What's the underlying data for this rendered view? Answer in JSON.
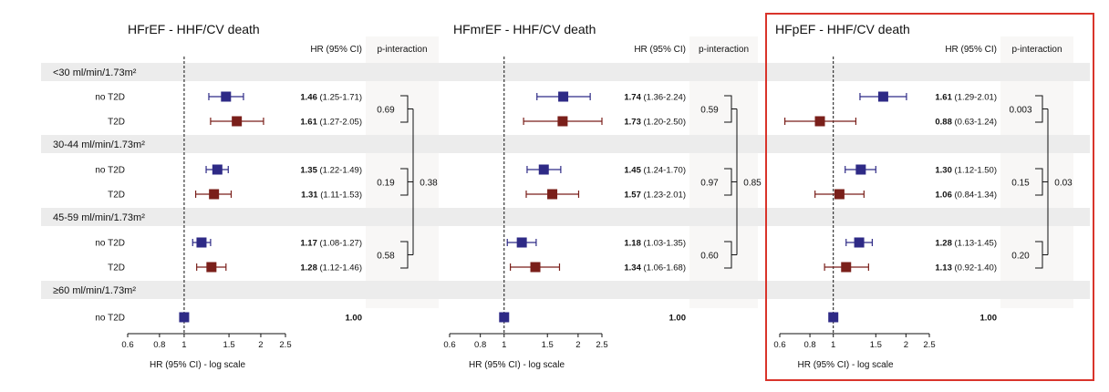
{
  "highlight_color": "#d9342b",
  "colors": {
    "no_t2d": "#2e2a86",
    "t2d": "#7a1f1a"
  },
  "headers": {
    "hr": "HR (95% CI)",
    "p_interaction": "p-interaction"
  },
  "categories": [
    {
      "label": "<30 ml/min/1.73m²",
      "rows": [
        "no T2D",
        "T2D"
      ]
    },
    {
      "label": "30-44 ml/min/1.73m²",
      "rows": [
        "no T2D",
        "T2D"
      ]
    },
    {
      "label": "45-59 ml/min/1.73m²",
      "rows": [
        "no T2D",
        "T2D"
      ]
    },
    {
      "label": "≥60 ml/min/1.73m²",
      "rows": [
        "no T2D"
      ]
    }
  ],
  "chart_data": [
    {
      "type": "forest",
      "title": "HFrEF - HHF/CV death",
      "xlabel": "HR (95% CI) - log scale",
      "x_scale": "log",
      "xlim": [
        0.6,
        2.5
      ],
      "xticks": [
        "0.6",
        "0.8",
        "1",
        "1.5",
        "2",
        "2.5"
      ],
      "reference_line": 1,
      "rows": [
        {
          "group": "<30 ml/min/1.73m²",
          "label": "no T2D",
          "hr": 1.46,
          "lo": 1.25,
          "hi": 1.71,
          "hr_text": "1.46",
          "ci_text": "(1.25-1.71)"
        },
        {
          "group": "<30 ml/min/1.73m²",
          "label": "T2D",
          "hr": 1.61,
          "lo": 1.27,
          "hi": 2.05,
          "hr_text": "1.61",
          "ci_text": "(1.27-2.05)"
        },
        {
          "group": "30-44 ml/min/1.73m²",
          "label": "no T2D",
          "hr": 1.35,
          "lo": 1.22,
          "hi": 1.49,
          "hr_text": "1.35",
          "ci_text": "(1.22-1.49)"
        },
        {
          "group": "30-44 ml/min/1.73m²",
          "label": "T2D",
          "hr": 1.31,
          "lo": 1.11,
          "hi": 1.53,
          "hr_text": "1.31",
          "ci_text": "(1.11-1.53)"
        },
        {
          "group": "45-59 ml/min/1.73m²",
          "label": "no T2D",
          "hr": 1.17,
          "lo": 1.08,
          "hi": 1.27,
          "hr_text": "1.17",
          "ci_text": "(1.08-1.27)"
        },
        {
          "group": "45-59 ml/min/1.73m²",
          "label": "T2D",
          "hr": 1.28,
          "lo": 1.12,
          "hi": 1.46,
          "hr_text": "1.28",
          "ci_text": "(1.12-1.46)"
        },
        {
          "group": "≥60 ml/min/1.73m²",
          "label": "no T2D",
          "hr": 1.0,
          "hr_text": "1.00",
          "ci_text": ""
        }
      ],
      "p_interaction_pairs": [
        "0.69",
        "0.19",
        "0.58"
      ],
      "p_interaction_overall": "0.38",
      "highlighted": false
    },
    {
      "type": "forest",
      "title": "HFmrEF - HHF/CV death",
      "xlabel": "HR (95% CI) - log scale",
      "x_scale": "log",
      "xlim": [
        0.6,
        2.5
      ],
      "xticks": [
        "0.6",
        "0.8",
        "1",
        "1.5",
        "2",
        "2.5"
      ],
      "reference_line": 1,
      "rows": [
        {
          "group": "<30 ml/min/1.73m²",
          "label": "no T2D",
          "hr": 1.74,
          "lo": 1.36,
          "hi": 2.24,
          "hr_text": "1.74",
          "ci_text": "(1.36-2.24)"
        },
        {
          "group": "<30 ml/min/1.73m²",
          "label": "T2D",
          "hr": 1.73,
          "lo": 1.2,
          "hi": 2.5,
          "hr_text": "1.73",
          "ci_text": "(1.20-2.50)"
        },
        {
          "group": "30-44 ml/min/1.73m²",
          "label": "no T2D",
          "hr": 1.45,
          "lo": 1.24,
          "hi": 1.7,
          "hr_text": "1.45",
          "ci_text": "(1.24-1.70)"
        },
        {
          "group": "30-44 ml/min/1.73m²",
          "label": "T2D",
          "hr": 1.57,
          "lo": 1.23,
          "hi": 2.01,
          "hr_text": "1.57",
          "ci_text": "(1.23-2.01)"
        },
        {
          "group": "45-59 ml/min/1.73m²",
          "label": "no T2D",
          "hr": 1.18,
          "lo": 1.03,
          "hi": 1.35,
          "hr_text": "1.18",
          "ci_text": "(1.03-1.35)"
        },
        {
          "group": "45-59 ml/min/1.73m²",
          "label": "T2D",
          "hr": 1.34,
          "lo": 1.06,
          "hi": 1.68,
          "hr_text": "1.34",
          "ci_text": "(1.06-1.68)"
        },
        {
          "group": "≥60 ml/min/1.73m²",
          "label": "no T2D",
          "hr": 1.0,
          "hr_text": "1.00",
          "ci_text": ""
        }
      ],
      "p_interaction_pairs": [
        "0.59",
        "0.97",
        "0.60"
      ],
      "p_interaction_overall": "0.85",
      "highlighted": false
    },
    {
      "type": "forest",
      "title": "HFpEF - HHF/CV death",
      "xlabel": "HR (95% CI) - log scale",
      "x_scale": "log",
      "xlim": [
        0.6,
        2.5
      ],
      "xticks": [
        "0.6",
        "0.8",
        "1",
        "1.5",
        "2",
        "2.5"
      ],
      "reference_line": 1,
      "rows": [
        {
          "group": "<30 ml/min/1.73m²",
          "label": "no T2D",
          "hr": 1.61,
          "lo": 1.29,
          "hi": 2.01,
          "hr_text": "1.61",
          "ci_text": "(1.29-2.01)"
        },
        {
          "group": "<30 ml/min/1.73m²",
          "label": "T2D",
          "hr": 0.88,
          "lo": 0.63,
          "hi": 1.24,
          "hr_text": "0.88",
          "ci_text": "(0.63-1.24)"
        },
        {
          "group": "30-44 ml/min/1.73m²",
          "label": "no T2D",
          "hr": 1.3,
          "lo": 1.12,
          "hi": 1.5,
          "hr_text": "1.30",
          "ci_text": "(1.12-1.50)"
        },
        {
          "group": "30-44 ml/min/1.73m²",
          "label": "T2D",
          "hr": 1.06,
          "lo": 0.84,
          "hi": 1.34,
          "hr_text": "1.06",
          "ci_text": "(0.84-1.34)"
        },
        {
          "group": "45-59 ml/min/1.73m²",
          "label": "no T2D",
          "hr": 1.28,
          "lo": 1.13,
          "hi": 1.45,
          "hr_text": "1.28",
          "ci_text": "(1.13-1.45)"
        },
        {
          "group": "45-59 ml/min/1.73m²",
          "label": "T2D",
          "hr": 1.13,
          "lo": 0.92,
          "hi": 1.4,
          "hr_text": "1.13",
          "ci_text": "(0.92-1.40)"
        },
        {
          "group": "≥60 ml/min/1.73m²",
          "label": "no T2D",
          "hr": 1.0,
          "hr_text": "1.00",
          "ci_text": ""
        }
      ],
      "p_interaction_pairs": [
        "0.003",
        "0.15",
        "0.20"
      ],
      "p_interaction_overall": "0.03",
      "highlighted": true
    }
  ]
}
